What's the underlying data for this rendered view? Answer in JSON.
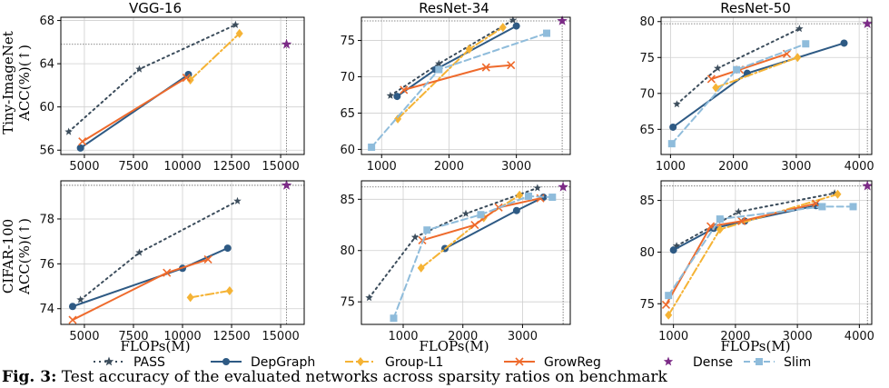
{
  "figure": {
    "caption_prefix": "Fig. 3:",
    "caption_text": " Test accuracy of the evaluated networks across sparsity ratios on benchmark",
    "row_labels": [
      "Tiny-ImageNet\nACC(%)(↑)",
      "CIFAR-100\nACC(%)(↑)"
    ],
    "col_titles": [
      "VGG-16",
      "ResNet-34",
      "ResNet-50"
    ],
    "xlabel": "FLOPs(M)",
    "legend": [
      {
        "name": "PASS",
        "color": "#3c4d5c",
        "marker": "star",
        "dash": "dot"
      },
      {
        "name": "DepGraph",
        "color": "#2e5a84",
        "marker": "circle",
        "dash": "solid"
      },
      {
        "name": "Group-L1",
        "color": "#f5b335",
        "marker": "diamond",
        "dash": "dashdot"
      },
      {
        "name": "GrowReg",
        "color": "#ee6a2c",
        "marker": "x",
        "dash": "solid"
      },
      {
        "name": "Dense",
        "color": "#7b2a86",
        "marker": "star",
        "dash": "none"
      },
      {
        "name": "Slim",
        "color": "#8fbcdb",
        "marker": "square",
        "dash": "dashed"
      }
    ]
  },
  "chart_data": [
    {
      "type": "line",
      "title": "VGG-16",
      "ylabel": "Tiny-ImageNet ACC(%)(↑)",
      "xlabel": "",
      "xlim": [
        3800,
        16200
      ],
      "ylim": [
        55.6,
        68.3
      ],
      "xticks": [
        5000,
        7500,
        10000,
        12500,
        15000
      ],
      "yticks": [
        56,
        60,
        64,
        68
      ],
      "dense": {
        "x": 15300,
        "y": 65.8
      },
      "series": [
        {
          "name": "PASS",
          "x": [
            4200,
            7800,
            12700
          ],
          "y": [
            57.7,
            63.5,
            67.6
          ]
        },
        {
          "name": "DepGraph",
          "x": [
            4800,
            10300
          ],
          "y": [
            56.2,
            63.0
          ]
        },
        {
          "name": "Group-L1",
          "x": [
            10400,
            12900
          ],
          "y": [
            62.5,
            66.8
          ]
        },
        {
          "name": "GrowReg",
          "x": [
            4900,
            10200
          ],
          "y": [
            56.8,
            62.7
          ]
        }
      ]
    },
    {
      "type": "line",
      "title": "ResNet-34",
      "ylabel": "",
      "xlabel": "",
      "xlim": [
        700,
        3800
      ],
      "ylim": [
        59.3,
        78.2
      ],
      "xticks": [
        1000,
        2000,
        3000
      ],
      "yticks": [
        60,
        65,
        70,
        75
      ],
      "dense": {
        "x": 3680,
        "y": 77.7
      },
      "series": [
        {
          "name": "PASS",
          "x": [
            1130,
            1850,
            2950
          ],
          "y": [
            67.4,
            71.8,
            77.8
          ]
        },
        {
          "name": "DepGraph",
          "x": [
            1230,
            1800,
            3000
          ],
          "y": [
            67.3,
            71.0,
            77.0
          ]
        },
        {
          "name": "Group-L1",
          "x": [
            1240,
            2300,
            2800
          ],
          "y": [
            64.2,
            73.8,
            76.8
          ]
        },
        {
          "name": "GrowReg",
          "x": [
            1330,
            2550,
            2920
          ],
          "y": [
            68.2,
            71.3,
            71.6
          ]
        },
        {
          "name": "Slim",
          "x": [
            850,
            1850,
            3450
          ],
          "y": [
            60.3,
            71.0,
            76.0
          ]
        }
      ]
    },
    {
      "type": "line",
      "title": "ResNet-50",
      "ylabel": "",
      "xlabel": "",
      "xlim": [
        850,
        4200
      ],
      "ylim": [
        61.5,
        80.6
      ],
      "xticks": [
        1000,
        2000,
        3000,
        4000
      ],
      "yticks": [
        65,
        70,
        75,
        80
      ],
      "dense": {
        "x": 4130,
        "y": 79.7
      },
      "series": [
        {
          "name": "PASS",
          "x": [
            1100,
            1750,
            3050
          ],
          "y": [
            68.5,
            73.5,
            79.0
          ]
        },
        {
          "name": "DepGraph",
          "x": [
            1040,
            2220,
            3760
          ],
          "y": [
            65.3,
            72.8,
            77.0
          ]
        },
        {
          "name": "Group-L1",
          "x": [
            1720,
            3020
          ],
          "y": [
            70.8,
            75.0
          ]
        },
        {
          "name": "GrowReg",
          "x": [
            1650,
            2100,
            2850
          ],
          "y": [
            72.0,
            73.3,
            75.5
          ]
        },
        {
          "name": "Slim",
          "x": [
            1020,
            2050,
            3150
          ],
          "y": [
            63.0,
            73.3,
            76.9
          ]
        }
      ]
    },
    {
      "type": "line",
      "title": "",
      "ylabel": "CIFAR-100 ACC(%)(↑)",
      "xlabel": "FLOPs(M)",
      "xlim": [
        3800,
        16200
      ],
      "ylim": [
        73.3,
        79.7
      ],
      "xticks": [
        5000,
        7500,
        10000,
        12500,
        15000
      ],
      "yticks": [
        74,
        76,
        78
      ],
      "dense": {
        "x": 15300,
        "y": 79.5
      },
      "series": [
        {
          "name": "PASS",
          "x": [
            4800,
            7800,
            12800
          ],
          "y": [
            74.4,
            76.5,
            78.8
          ]
        },
        {
          "name": "DepGraph",
          "x": [
            4400,
            10000,
            12300
          ],
          "y": [
            74.1,
            75.8,
            76.7
          ]
        },
        {
          "name": "Group-L1",
          "x": [
            10400,
            12400
          ],
          "y": [
            74.5,
            74.8
          ]
        },
        {
          "name": "GrowReg",
          "x": [
            4400,
            9200,
            11300
          ],
          "y": [
            73.5,
            75.6,
            76.2
          ]
        }
      ]
    },
    {
      "type": "line",
      "title": "",
      "ylabel": "",
      "xlabel": "FLOPs(M)",
      "xlim": [
        300,
        3800
      ],
      "ylim": [
        72.8,
        86.8
      ],
      "xticks": [
        1000,
        2000,
        3000
      ],
      "yticks": [
        75,
        80,
        85
      ],
      "dense": {
        "x": 3680,
        "y": 86.2
      },
      "series": [
        {
          "name": "PASS",
          "x": [
            430,
            1200,
            2050,
            3250
          ],
          "y": [
            75.4,
            81.3,
            83.6,
            86.1
          ]
        },
        {
          "name": "DepGraph",
          "x": [
            1700,
            2900,
            3350
          ],
          "y": [
            80.2,
            83.9,
            85.2
          ]
        },
        {
          "name": "Group-L1",
          "x": [
            1300,
            2350,
            2950
          ],
          "y": [
            78.3,
            83.2,
            85.4
          ]
        },
        {
          "name": "GrowReg",
          "x": [
            1320,
            2200,
            2600,
            3300
          ],
          "y": [
            81.0,
            82.5,
            84.2,
            85.1
          ]
        },
        {
          "name": "Slim",
          "x": [
            840,
            1400,
            2300,
            3100,
            3500
          ],
          "y": [
            73.4,
            82.0,
            83.5,
            85.3,
            85.2
          ]
        }
      ]
    },
    {
      "type": "line",
      "title": "",
      "ylabel": "",
      "xlabel": "FLOPs(M)",
      "xlim": [
        800,
        4200
      ],
      "ylim": [
        73.0,
        86.9
      ],
      "xticks": [
        1000,
        2000,
        3000,
        4000
      ],
      "yticks": [
        75,
        80,
        85
      ],
      "dense": {
        "x": 4130,
        "y": 86.4
      },
      "series": [
        {
          "name": "PASS",
          "x": [
            1050,
            2050,
            3600
          ],
          "y": [
            80.6,
            83.9,
            85.7
          ]
        },
        {
          "name": "DepGraph",
          "x": [
            1000,
            1650,
            2150,
            3300
          ],
          "y": [
            80.2,
            82.3,
            83.0,
            84.5
          ]
        },
        {
          "name": "Group-L1",
          "x": [
            920,
            1750,
            3650
          ],
          "y": [
            73.9,
            82.2,
            85.6
          ]
        },
        {
          "name": "GrowReg",
          "x": [
            880,
            1600,
            2100,
            3300
          ],
          "y": [
            74.9,
            82.5,
            83.0,
            84.7
          ]
        },
        {
          "name": "Slim",
          "x": [
            920,
            1750,
            3400,
            3900
          ],
          "y": [
            75.8,
            83.2,
            84.4,
            84.4
          ]
        }
      ]
    }
  ]
}
